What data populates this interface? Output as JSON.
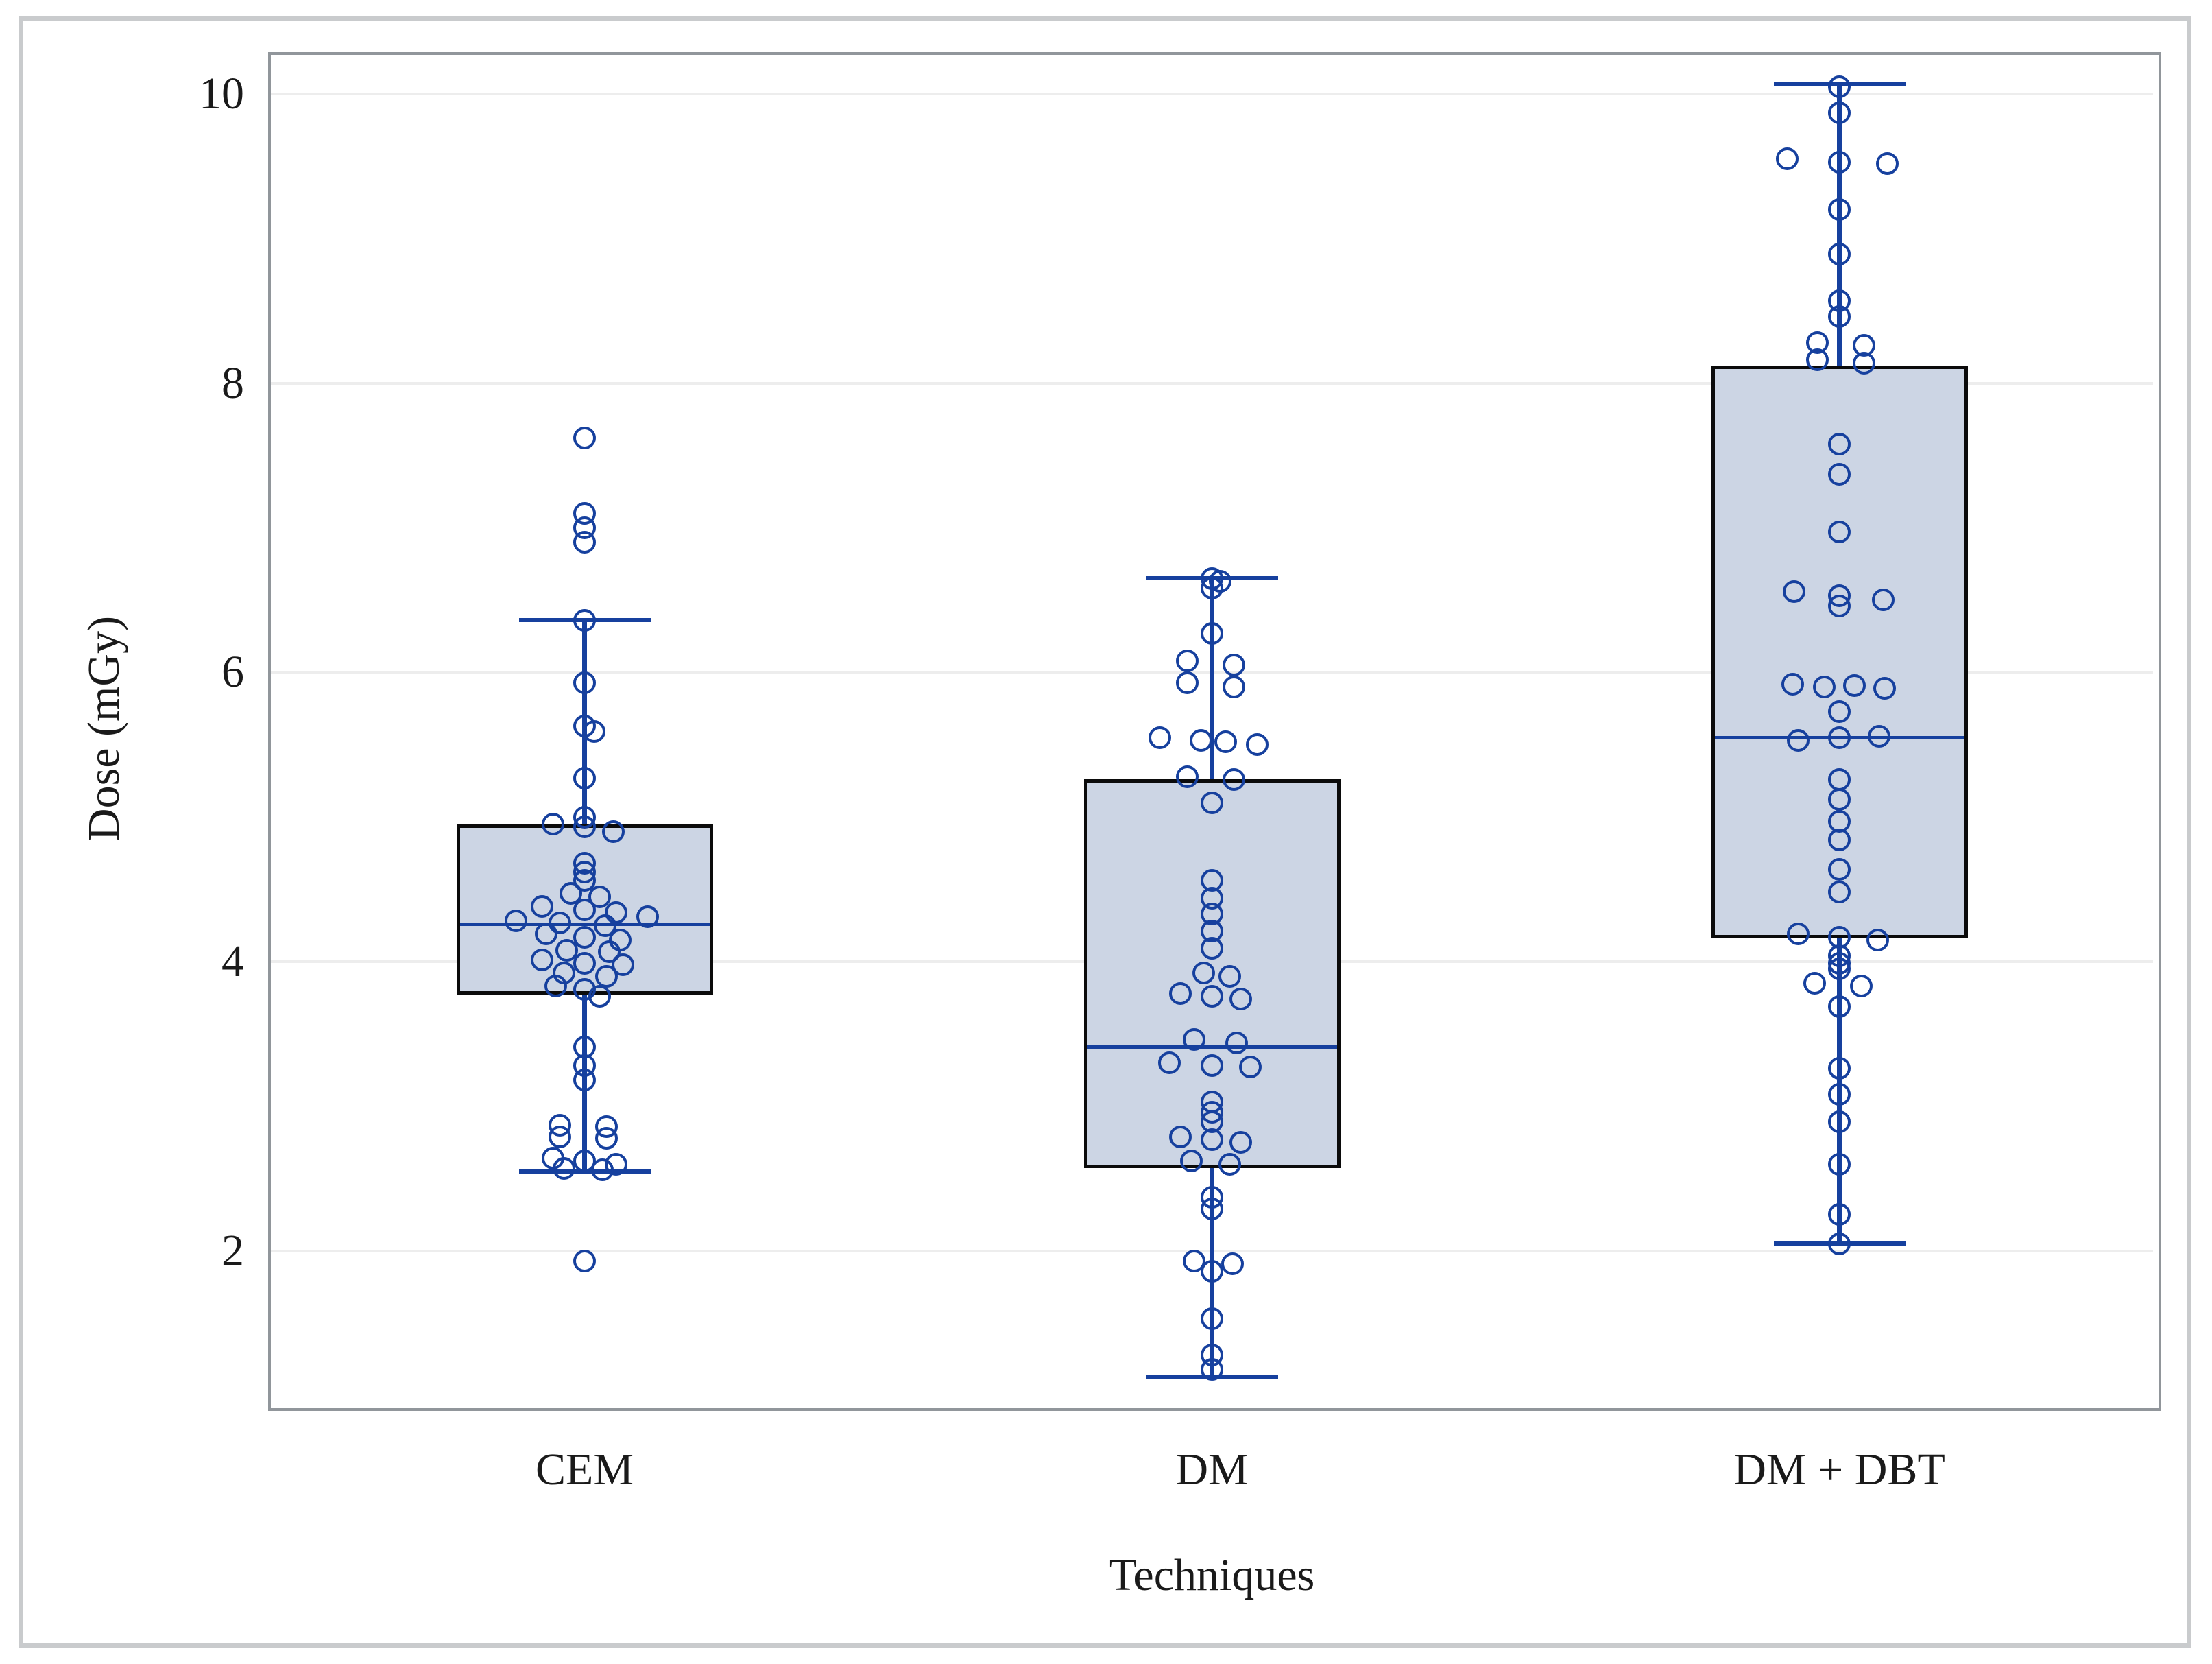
{
  "figure": {
    "background": "#ffffff",
    "outer_border_color": "#c9cbcd"
  },
  "chart_data": {
    "type": "box",
    "title": "",
    "xlabel": "Techniques",
    "ylabel": "Dose (mGy)",
    "ylim": [
      0.95,
      10.27
    ],
    "yticks": [
      2,
      4,
      6,
      8,
      10
    ],
    "grid": "horizontal-only",
    "legend": "none",
    "marker_style": "open-circle",
    "categories": [
      "CEM",
      "DM",
      "DM + DBT"
    ],
    "series": [
      {
        "name": "CEM",
        "whisker_low": 2.55,
        "q1": 3.77,
        "median": 4.26,
        "q3": 4.95,
        "whisker_high": 6.36,
        "points": [
          [
            7.62,
            0
          ],
          [
            7.1,
            0
          ],
          [
            7.0,
            0
          ],
          [
            6.9,
            0
          ],
          [
            6.36,
            0
          ],
          [
            5.93,
            0
          ],
          [
            5.63,
            0
          ],
          [
            5.59,
            14
          ],
          [
            5.27,
            0
          ],
          [
            5.0,
            0
          ],
          [
            4.95,
            -46
          ],
          [
            4.93,
            0
          ],
          [
            4.9,
            42
          ],
          [
            4.68,
            0
          ],
          [
            4.62,
            0
          ],
          [
            4.56,
            0
          ],
          [
            4.47,
            -20
          ],
          [
            4.45,
            22
          ],
          [
            4.38,
            -62
          ],
          [
            4.36,
            0
          ],
          [
            4.34,
            46
          ],
          [
            4.31,
            92
          ],
          [
            4.28,
            -100
          ],
          [
            4.27,
            -36
          ],
          [
            4.25,
            30
          ],
          [
            4.19,
            -56
          ],
          [
            4.17,
            0
          ],
          [
            4.15,
            52
          ],
          [
            4.08,
            -26
          ],
          [
            4.07,
            36
          ],
          [
            4.01,
            -62
          ],
          [
            3.99,
            0
          ],
          [
            3.98,
            56
          ],
          [
            3.92,
            -30
          ],
          [
            3.9,
            32
          ],
          [
            3.83,
            -42
          ],
          [
            3.81,
            0
          ],
          [
            3.76,
            22
          ],
          [
            3.41,
            0
          ],
          [
            3.28,
            0
          ],
          [
            3.18,
            0
          ],
          [
            2.87,
            -36
          ],
          [
            2.86,
            32
          ],
          [
            2.79,
            -36
          ],
          [
            2.78,
            32
          ],
          [
            2.64,
            -46
          ],
          [
            2.62,
            0
          ],
          [
            2.6,
            46
          ],
          [
            2.57,
            -30
          ],
          [
            2.56,
            26
          ],
          [
            1.93,
            0
          ]
        ]
      },
      {
        "name": "DM",
        "whisker_low": 1.13,
        "q1": 2.57,
        "median": 3.41,
        "q3": 5.26,
        "whisker_high": 6.65,
        "points": [
          [
            6.65,
            0
          ],
          [
            6.63,
            12
          ],
          [
            6.58,
            0
          ],
          [
            6.27,
            0
          ],
          [
            6.08,
            -36
          ],
          [
            6.05,
            32
          ],
          [
            5.93,
            -36
          ],
          [
            5.9,
            32
          ],
          [
            5.55,
            -76
          ],
          [
            5.53,
            -16
          ],
          [
            5.52,
            20
          ],
          [
            5.5,
            66
          ],
          [
            5.28,
            -36
          ],
          [
            5.26,
            32
          ],
          [
            5.1,
            0
          ],
          [
            4.56,
            0
          ],
          [
            4.44,
            0
          ],
          [
            4.33,
            0
          ],
          [
            4.21,
            0
          ],
          [
            4.09,
            0
          ],
          [
            3.92,
            -12
          ],
          [
            3.9,
            26
          ],
          [
            3.78,
            -46
          ],
          [
            3.76,
            0
          ],
          [
            3.74,
            42
          ],
          [
            3.46,
            -26
          ],
          [
            3.44,
            36
          ],
          [
            3.3,
            -62
          ],
          [
            3.28,
            0
          ],
          [
            3.27,
            56
          ],
          [
            3.03,
            0
          ],
          [
            2.96,
            0
          ],
          [
            2.89,
            0
          ],
          [
            2.79,
            -46
          ],
          [
            2.77,
            0
          ],
          [
            2.75,
            42
          ],
          [
            2.62,
            -30
          ],
          [
            2.6,
            26
          ],
          [
            2.37,
            0
          ],
          [
            2.29,
            0
          ],
          [
            1.93,
            -26
          ],
          [
            1.91,
            30
          ],
          [
            1.86,
            0
          ],
          [
            1.53,
            0
          ],
          [
            1.28,
            0
          ],
          [
            1.18,
            0
          ]
        ]
      },
      {
        "name": "DM + DBT",
        "whisker_low": 2.05,
        "q1": 4.16,
        "median": 5.55,
        "q3": 8.12,
        "whisker_high": 10.07,
        "points": [
          [
            10.05,
            0
          ],
          [
            9.87,
            0
          ],
          [
            9.55,
            -76
          ],
          [
            9.53,
            0
          ],
          [
            9.52,
            70
          ],
          [
            9.2,
            0
          ],
          [
            8.89,
            0
          ],
          [
            8.57,
            0
          ],
          [
            8.46,
            0
          ],
          [
            8.28,
            -32
          ],
          [
            8.26,
            36
          ],
          [
            8.16,
            -32
          ],
          [
            8.14,
            36
          ],
          [
            7.58,
            0
          ],
          [
            7.37,
            0
          ],
          [
            6.97,
            0
          ],
          [
            6.56,
            -66
          ],
          [
            6.53,
            0
          ],
          [
            6.46,
            0
          ],
          [
            6.5,
            64
          ],
          [
            5.92,
            -68
          ],
          [
            5.9,
            -22
          ],
          [
            5.91,
            22
          ],
          [
            5.89,
            66
          ],
          [
            5.73,
            0
          ],
          [
            5.53,
            -60
          ],
          [
            5.55,
            0
          ],
          [
            5.56,
            58
          ],
          [
            5.26,
            0
          ],
          [
            5.12,
            0
          ],
          [
            4.97,
            0
          ],
          [
            4.84,
            0
          ],
          [
            4.64,
            0
          ],
          [
            4.48,
            0
          ],
          [
            4.19,
            -60
          ],
          [
            4.17,
            0
          ],
          [
            4.15,
            56
          ],
          [
            4.04,
            0
          ],
          [
            3.99,
            0
          ],
          [
            3.95,
            0
          ],
          [
            3.85,
            -36
          ],
          [
            3.83,
            32
          ],
          [
            3.69,
            0
          ],
          [
            3.26,
            0
          ],
          [
            3.08,
            0
          ],
          [
            2.89,
            0
          ],
          [
            2.6,
            0
          ],
          [
            2.25,
            0
          ],
          [
            2.05,
            0
          ]
        ]
      }
    ],
    "colors": {
      "marker": "#16409e",
      "whisker": "#16409e",
      "median": "#16409e",
      "box_fill": "#ccd5e4",
      "box_border": "#0b0b0b",
      "gridline": "#ededed",
      "frame": "#91969b",
      "text": "#1a1a1a"
    }
  }
}
